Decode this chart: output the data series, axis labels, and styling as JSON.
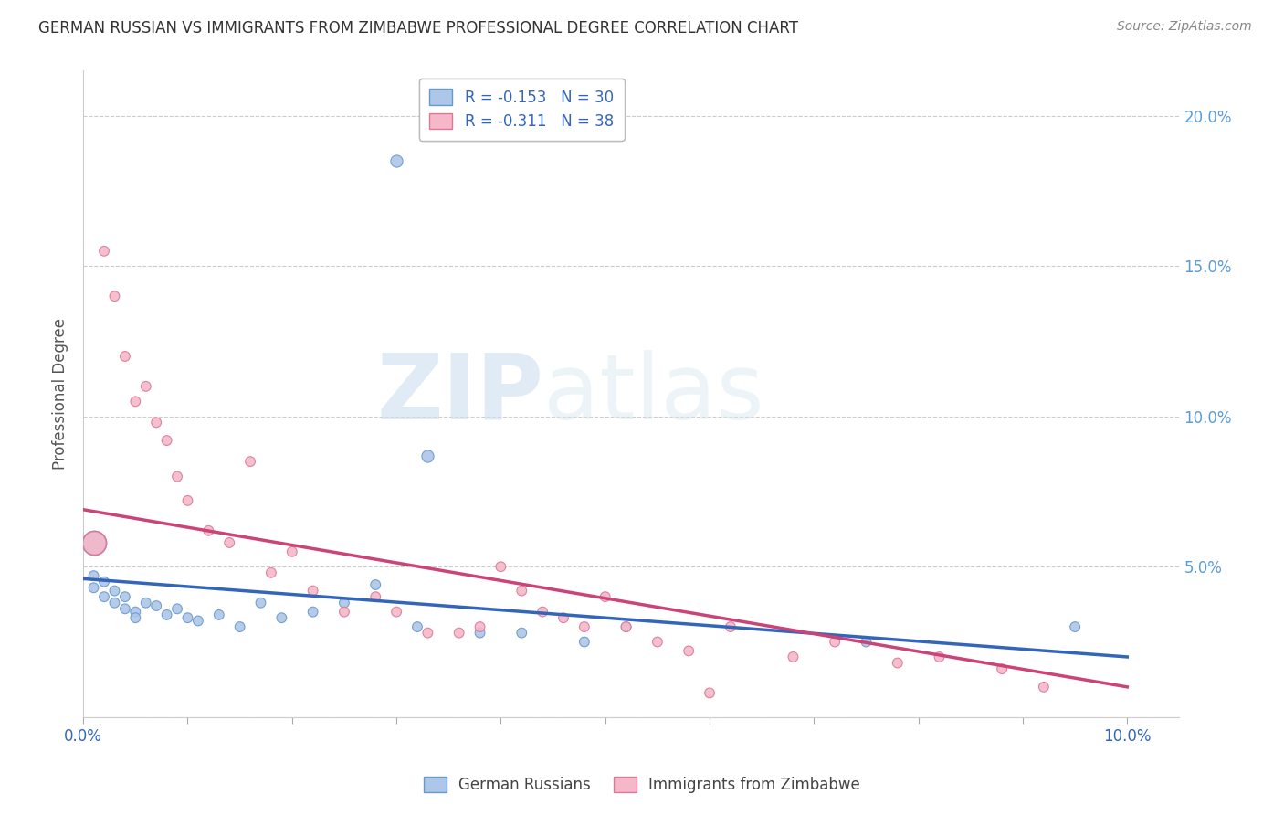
{
  "title": "GERMAN RUSSIAN VS IMMIGRANTS FROM ZIMBABWE PROFESSIONAL DEGREE CORRELATION CHART",
  "source": "Source: ZipAtlas.com",
  "ylabel": "Professional Degree",
  "xlim": [
    0.0,
    0.105
  ],
  "ylim": [
    0.0,
    0.215
  ],
  "ytick_labels": [
    "",
    "5.0%",
    "10.0%",
    "15.0%",
    "20.0%"
  ],
  "ytick_values": [
    0.0,
    0.05,
    0.1,
    0.15,
    0.2
  ],
  "xtick_values": [
    0.0,
    0.01,
    0.02,
    0.03,
    0.04,
    0.05,
    0.06,
    0.07,
    0.08,
    0.09,
    0.1
  ],
  "gr_color": "#aec6e8",
  "gr_edge_color": "#6699cc",
  "zim_color": "#f4b8c8",
  "zim_edge_color": "#dd7799",
  "gr_R": -0.153,
  "gr_N": 30,
  "zim_R": -0.311,
  "zim_N": 38,
  "legend_label_gr": "German Russians",
  "legend_label_zim": "Immigrants from Zimbabwe",
  "watermark_zip": "ZIP",
  "watermark_atlas": "atlas",
  "title_color": "#333333",
  "axis_label_color": "#555555",
  "tick_color_right": "#5b9bd5",
  "grid_color": "#cccccc",
  "trend_gr_color": "#3366bb",
  "trend_zim_color": "#cc4477",
  "background_color": "#ffffff",
  "gr_scatter_x": [
    0.001,
    0.001,
    0.002,
    0.002,
    0.003,
    0.003,
    0.004,
    0.004,
    0.005,
    0.005,
    0.006,
    0.007,
    0.008,
    0.009,
    0.01,
    0.011,
    0.013,
    0.015,
    0.017,
    0.019,
    0.022,
    0.025,
    0.028,
    0.032,
    0.038,
    0.042,
    0.048,
    0.052,
    0.075,
    0.095
  ],
  "gr_scatter_y": [
    0.047,
    0.043,
    0.045,
    0.04,
    0.042,
    0.038,
    0.04,
    0.036,
    0.035,
    0.033,
    0.038,
    0.037,
    0.034,
    0.036,
    0.033,
    0.032,
    0.034,
    0.03,
    0.038,
    0.033,
    0.035,
    0.038,
    0.044,
    0.03,
    0.028,
    0.028,
    0.025,
    0.03,
    0.025,
    0.03
  ],
  "gr_scatter_sizes": [
    60,
    60,
    60,
    60,
    60,
    60,
    60,
    60,
    60,
    60,
    60,
    60,
    60,
    60,
    60,
    60,
    60,
    60,
    60,
    60,
    60,
    60,
    60,
    60,
    60,
    60,
    60,
    60,
    60,
    60
  ],
  "gr_big_x": [
    0.001
  ],
  "gr_big_y": [
    0.058
  ],
  "gr_big_size": [
    350
  ],
  "gr_high_x": [
    0.03
  ],
  "gr_high_y": [
    0.185
  ],
  "gr_high_size": [
    90
  ],
  "gr_med_x": [
    0.033
  ],
  "gr_med_y": [
    0.087
  ],
  "gr_med_size": [
    90
  ],
  "zim_scatter_x": [
    0.002,
    0.003,
    0.004,
    0.005,
    0.006,
    0.007,
    0.008,
    0.009,
    0.01,
    0.012,
    0.014,
    0.016,
    0.018,
    0.02,
    0.022,
    0.025,
    0.028,
    0.03,
    0.033,
    0.036,
    0.04,
    0.044,
    0.048,
    0.052,
    0.058,
    0.062,
    0.068,
    0.072,
    0.078,
    0.082,
    0.088,
    0.092,
    0.05,
    0.055,
    0.038,
    0.042,
    0.046,
    0.06
  ],
  "zim_scatter_y": [
    0.155,
    0.14,
    0.12,
    0.105,
    0.11,
    0.098,
    0.092,
    0.08,
    0.072,
    0.062,
    0.058,
    0.085,
    0.048,
    0.055,
    0.042,
    0.035,
    0.04,
    0.035,
    0.028,
    0.028,
    0.05,
    0.035,
    0.03,
    0.03,
    0.022,
    0.03,
    0.02,
    0.025,
    0.018,
    0.02,
    0.016,
    0.01,
    0.04,
    0.025,
    0.03,
    0.042,
    0.033,
    0.008
  ],
  "zim_scatter_sizes": [
    60,
    60,
    60,
    60,
    60,
    60,
    60,
    60,
    60,
    60,
    60,
    60,
    60,
    60,
    60,
    60,
    60,
    60,
    60,
    60,
    60,
    60,
    60,
    60,
    60,
    60,
    60,
    60,
    60,
    60,
    60,
    60,
    60,
    60,
    60,
    60,
    60,
    60
  ],
  "zim_big_x": [
    0.001
  ],
  "zim_big_y": [
    0.058
  ],
  "zim_big_size": [
    350
  ],
  "trend_gr_x0": 0.0,
  "trend_gr_y0": 0.046,
  "trend_gr_x1": 0.1,
  "trend_gr_y1": 0.02,
  "trend_zim_x0": 0.0,
  "trend_zim_y0": 0.069,
  "trend_zim_x1": 0.1,
  "trend_zim_y1": 0.01
}
